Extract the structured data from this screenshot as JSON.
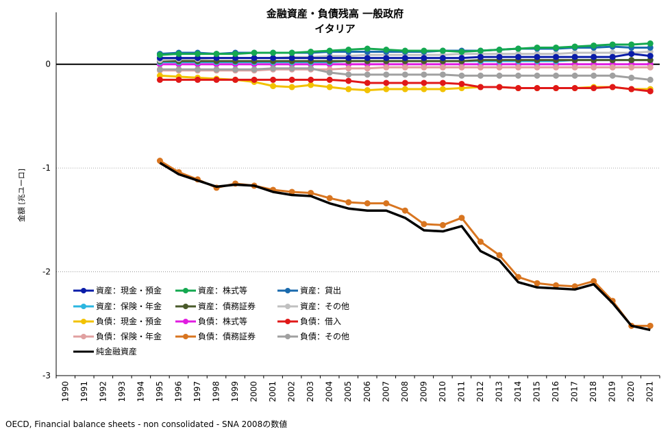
{
  "chart_data": {
    "type": "line",
    "title": "金融資産・負債残高 一般政府",
    "subtitle": "イタリア",
    "ylabel": "金額 [兆ユーロ]",
    "xlabel": "",
    "ylim": [
      -3,
      0.5
    ],
    "yticks": [
      -3,
      -2,
      -1,
      0
    ],
    "categories": [
      "1990",
      "1991",
      "1992",
      "1993",
      "1994",
      "1995",
      "1996",
      "1997",
      "1998",
      "1999",
      "2000",
      "2001",
      "2002",
      "2003",
      "2004",
      "2005",
      "2006",
      "2007",
      "2008",
      "2009",
      "2010",
      "2011",
      "2012",
      "2013",
      "2014",
      "2015",
      "2016",
      "2017",
      "2018",
      "2019",
      "2020",
      "2021"
    ],
    "grid": "horizontal",
    "legend_position": "bottom-left inside plot",
    "source": "OECD, Financial balance sheets - non consolidated - SNA 2008の数値",
    "series": [
      {
        "name": "資産：現金・預金",
        "color": "#0a1ca8",
        "values": [
          null,
          null,
          null,
          null,
          null,
          0.06,
          0.06,
          0.06,
          0.06,
          0.06,
          0.06,
          0.06,
          0.06,
          0.06,
          0.06,
          0.06,
          0.06,
          0.06,
          0.06,
          0.06,
          0.06,
          0.06,
          0.07,
          0.07,
          0.07,
          0.07,
          0.07,
          0.07,
          0.07,
          0.07,
          0.1,
          0.08
        ]
      },
      {
        "name": "資産：株式等",
        "color": "#14a850",
        "values": [
          null,
          null,
          null,
          null,
          null,
          0.09,
          0.1,
          0.1,
          0.1,
          0.1,
          0.11,
          0.11,
          0.11,
          0.12,
          0.13,
          0.14,
          0.15,
          0.14,
          0.13,
          0.13,
          0.13,
          0.12,
          0.13,
          0.14,
          0.15,
          0.16,
          0.16,
          0.17,
          0.18,
          0.19,
          0.19,
          0.2
        ]
      },
      {
        "name": "資産：貸出",
        "color": "#1a6aad",
        "values": [
          null,
          null,
          null,
          null,
          null,
          0.1,
          0.11,
          0.11,
          0.1,
          0.11,
          0.11,
          0.11,
          0.11,
          0.11,
          0.12,
          0.12,
          0.12,
          0.12,
          0.12,
          0.12,
          0.13,
          0.13,
          0.13,
          0.14,
          0.15,
          0.15,
          0.15,
          0.16,
          0.16,
          0.17,
          0.16,
          0.16
        ]
      },
      {
        "name": "資産：保険・年金",
        "color": "#2bb6e0",
        "values": [
          null,
          null,
          null,
          null,
          null,
          0.02,
          0.02,
          0.02,
          0.02,
          0.02,
          0.02,
          0.02,
          0.02,
          0.02,
          0.02,
          0.03,
          0.03,
          0.03,
          0.03,
          0.03,
          0.03,
          0.03,
          0.03,
          0.03,
          0.03,
          0.03,
          0.03,
          0.04,
          0.04,
          0.04,
          0.04,
          0.04
        ]
      },
      {
        "name": "資産：債務証券",
        "color": "#4a5a2a",
        "values": [
          null,
          null,
          null,
          null,
          null,
          0.03,
          0.03,
          0.03,
          0.03,
          0.03,
          0.03,
          0.03,
          0.03,
          0.03,
          0.03,
          0.03,
          0.03,
          0.03,
          0.03,
          0.03,
          0.03,
          0.03,
          0.04,
          0.04,
          0.04,
          0.04,
          0.04,
          0.04,
          0.04,
          0.04,
          0.04,
          0.04
        ]
      },
      {
        "name": "資産：その他",
        "color": "#c0c0c0",
        "values": [
          null,
          null,
          null,
          null,
          null,
          0.04,
          0.05,
          0.05,
          0.06,
          0.06,
          0.06,
          0.06,
          0.07,
          0.07,
          0.08,
          0.08,
          0.09,
          0.09,
          0.09,
          0.09,
          0.09,
          0.1,
          0.1,
          0.1,
          0.1,
          0.1,
          0.1,
          0.11,
          0.11,
          0.11,
          0.11,
          0.12
        ]
      },
      {
        "name": "負債：現金・預金",
        "color": "#f2c200",
        "values": [
          null,
          null,
          null,
          null,
          null,
          -0.11,
          -0.12,
          -0.13,
          -0.14,
          -0.15,
          -0.17,
          -0.21,
          -0.22,
          -0.2,
          -0.22,
          -0.24,
          -0.25,
          -0.24,
          -0.24,
          -0.24,
          -0.24,
          -0.23,
          -0.22,
          -0.22,
          -0.23,
          -0.23,
          -0.23,
          -0.23,
          -0.22,
          -0.22,
          -0.24,
          -0.24
        ]
      },
      {
        "name": "負債：株式等",
        "color": "#e01ce0",
        "values": [
          null,
          null,
          null,
          null,
          null,
          0,
          0,
          0,
          0,
          0,
          0,
          0,
          0,
          0,
          0,
          0,
          0,
          0,
          0,
          0,
          0,
          0,
          0,
          0,
          0,
          0,
          0,
          0,
          0,
          0,
          0,
          0
        ]
      },
      {
        "name": "負債：借入",
        "color": "#e01818",
        "values": [
          null,
          null,
          null,
          null,
          null,
          -0.15,
          -0.15,
          -0.15,
          -0.15,
          -0.15,
          -0.15,
          -0.15,
          -0.15,
          -0.15,
          -0.15,
          -0.16,
          -0.18,
          -0.18,
          -0.18,
          -0.18,
          -0.18,
          -0.19,
          -0.22,
          -0.22,
          -0.23,
          -0.23,
          -0.23,
          -0.23,
          -0.23,
          -0.22,
          -0.24,
          -0.26
        ]
      },
      {
        "name": "負債：保険・年金",
        "color": "#e0a0a0",
        "values": [
          null,
          null,
          null,
          null,
          null,
          -0.06,
          -0.06,
          -0.06,
          -0.06,
          -0.06,
          -0.06,
          -0.05,
          -0.05,
          -0.05,
          -0.05,
          -0.04,
          -0.04,
          -0.03,
          -0.03,
          -0.03,
          -0.03,
          -0.03,
          -0.03,
          -0.03,
          -0.03,
          -0.03,
          -0.03,
          -0.03,
          -0.03,
          -0.03,
          -0.03,
          -0.03
        ]
      },
      {
        "name": "負債：債務証券",
        "color": "#d87520",
        "values": [
          null,
          null,
          null,
          null,
          null,
          -0.93,
          -1.04,
          -1.11,
          -1.19,
          -1.15,
          -1.17,
          -1.21,
          -1.23,
          -1.24,
          -1.29,
          -1.33,
          -1.34,
          -1.34,
          -1.41,
          -1.54,
          -1.55,
          -1.48,
          -1.71,
          -1.84,
          -2.05,
          -2.11,
          -2.13,
          -2.14,
          -2.09,
          -2.28,
          -2.52,
          -2.52
        ]
      },
      {
        "name": "負債：その他",
        "color": "#a0a0a0",
        "values": [
          null,
          null,
          null,
          null,
          null,
          -0.05,
          -0.05,
          -0.05,
          -0.05,
          -0.05,
          -0.05,
          -0.04,
          -0.04,
          -0.04,
          -0.08,
          -0.1,
          -0.1,
          -0.1,
          -0.1,
          -0.1,
          -0.1,
          -0.11,
          -0.11,
          -0.11,
          -0.11,
          -0.11,
          -0.11,
          -0.11,
          -0.11,
          -0.11,
          -0.13,
          -0.15
        ]
      },
      {
        "name": "純金融資産",
        "color": "#000000",
        "values": [
          null,
          null,
          null,
          null,
          null,
          -0.95,
          -1.06,
          -1.12,
          -1.18,
          -1.16,
          -1.17,
          -1.23,
          -1.26,
          -1.27,
          -1.34,
          -1.39,
          -1.41,
          -1.41,
          -1.48,
          -1.6,
          -1.61,
          -1.56,
          -1.8,
          -1.89,
          -2.1,
          -2.15,
          -2.16,
          -2.17,
          -2.12,
          -2.3,
          -2.52,
          -2.56
        ]
      }
    ]
  }
}
